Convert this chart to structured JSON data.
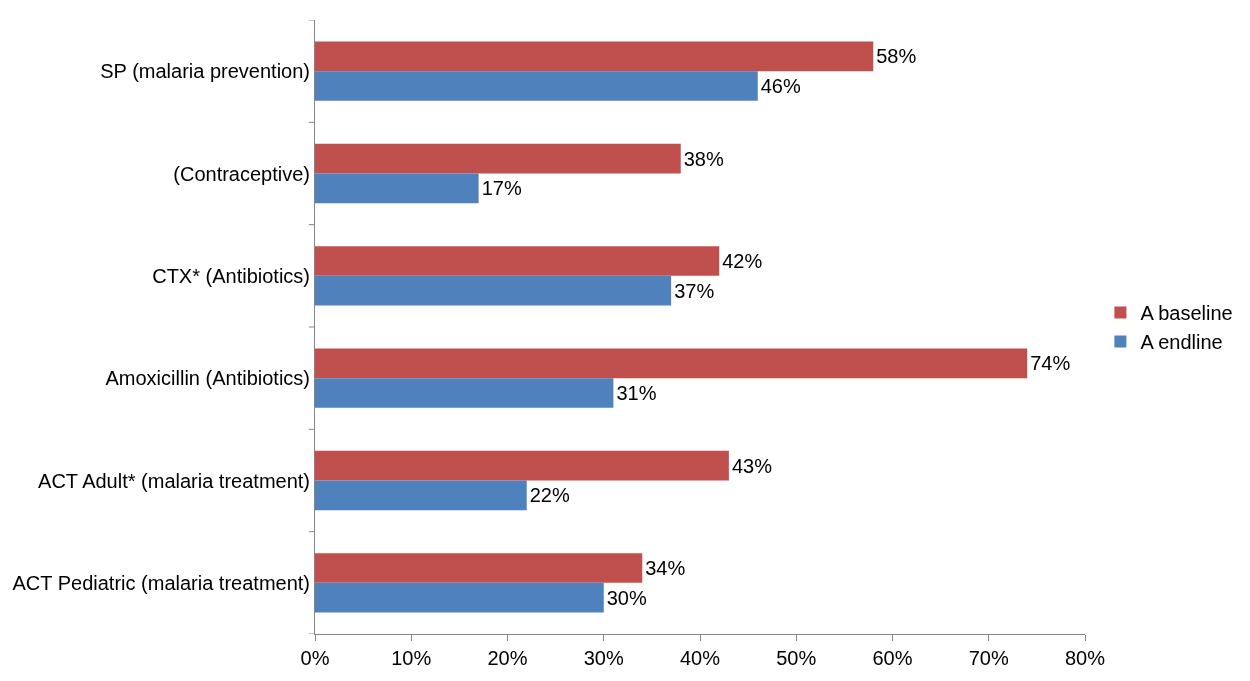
{
  "chart_data": {
    "type": "bar",
    "orientation": "horizontal",
    "categories": [
      "SP (malaria prevention)",
      "(Contraceptive)",
      "CTX* (Antibiotics)",
      "Amoxicillin (Antibiotics)",
      "ACT Adult* (malaria treatment)",
      "ACT Pediatric (malaria treatment)"
    ],
    "series": [
      {
        "name": "A baseline",
        "color": "#c0504d",
        "values": [
          58,
          38,
          42,
          74,
          43,
          34
        ],
        "value_labels": [
          "58%",
          "38%",
          "42%",
          "74%",
          "43%",
          "34%"
        ]
      },
      {
        "name": "A endline",
        "color": "#4f81bd",
        "values": [
          46,
          17,
          37,
          31,
          22,
          30
        ],
        "value_labels": [
          "46%",
          "17%",
          "37%",
          "31%",
          "22%",
          "30%"
        ]
      }
    ],
    "xlim": [
      0,
      80
    ],
    "xticks": [
      {
        "value": 0,
        "label": "0%"
      },
      {
        "value": 10,
        "label": "10%"
      },
      {
        "value": 20,
        "label": "20%"
      },
      {
        "value": 30,
        "label": "30%"
      },
      {
        "value": 40,
        "label": "40%"
      },
      {
        "value": 50,
        "label": "50%"
      },
      {
        "value": 60,
        "label": "60%"
      },
      {
        "value": 70,
        "label": "70%"
      },
      {
        "value": 80,
        "label": "80%"
      }
    ],
    "grid": false,
    "legend": "right"
  }
}
